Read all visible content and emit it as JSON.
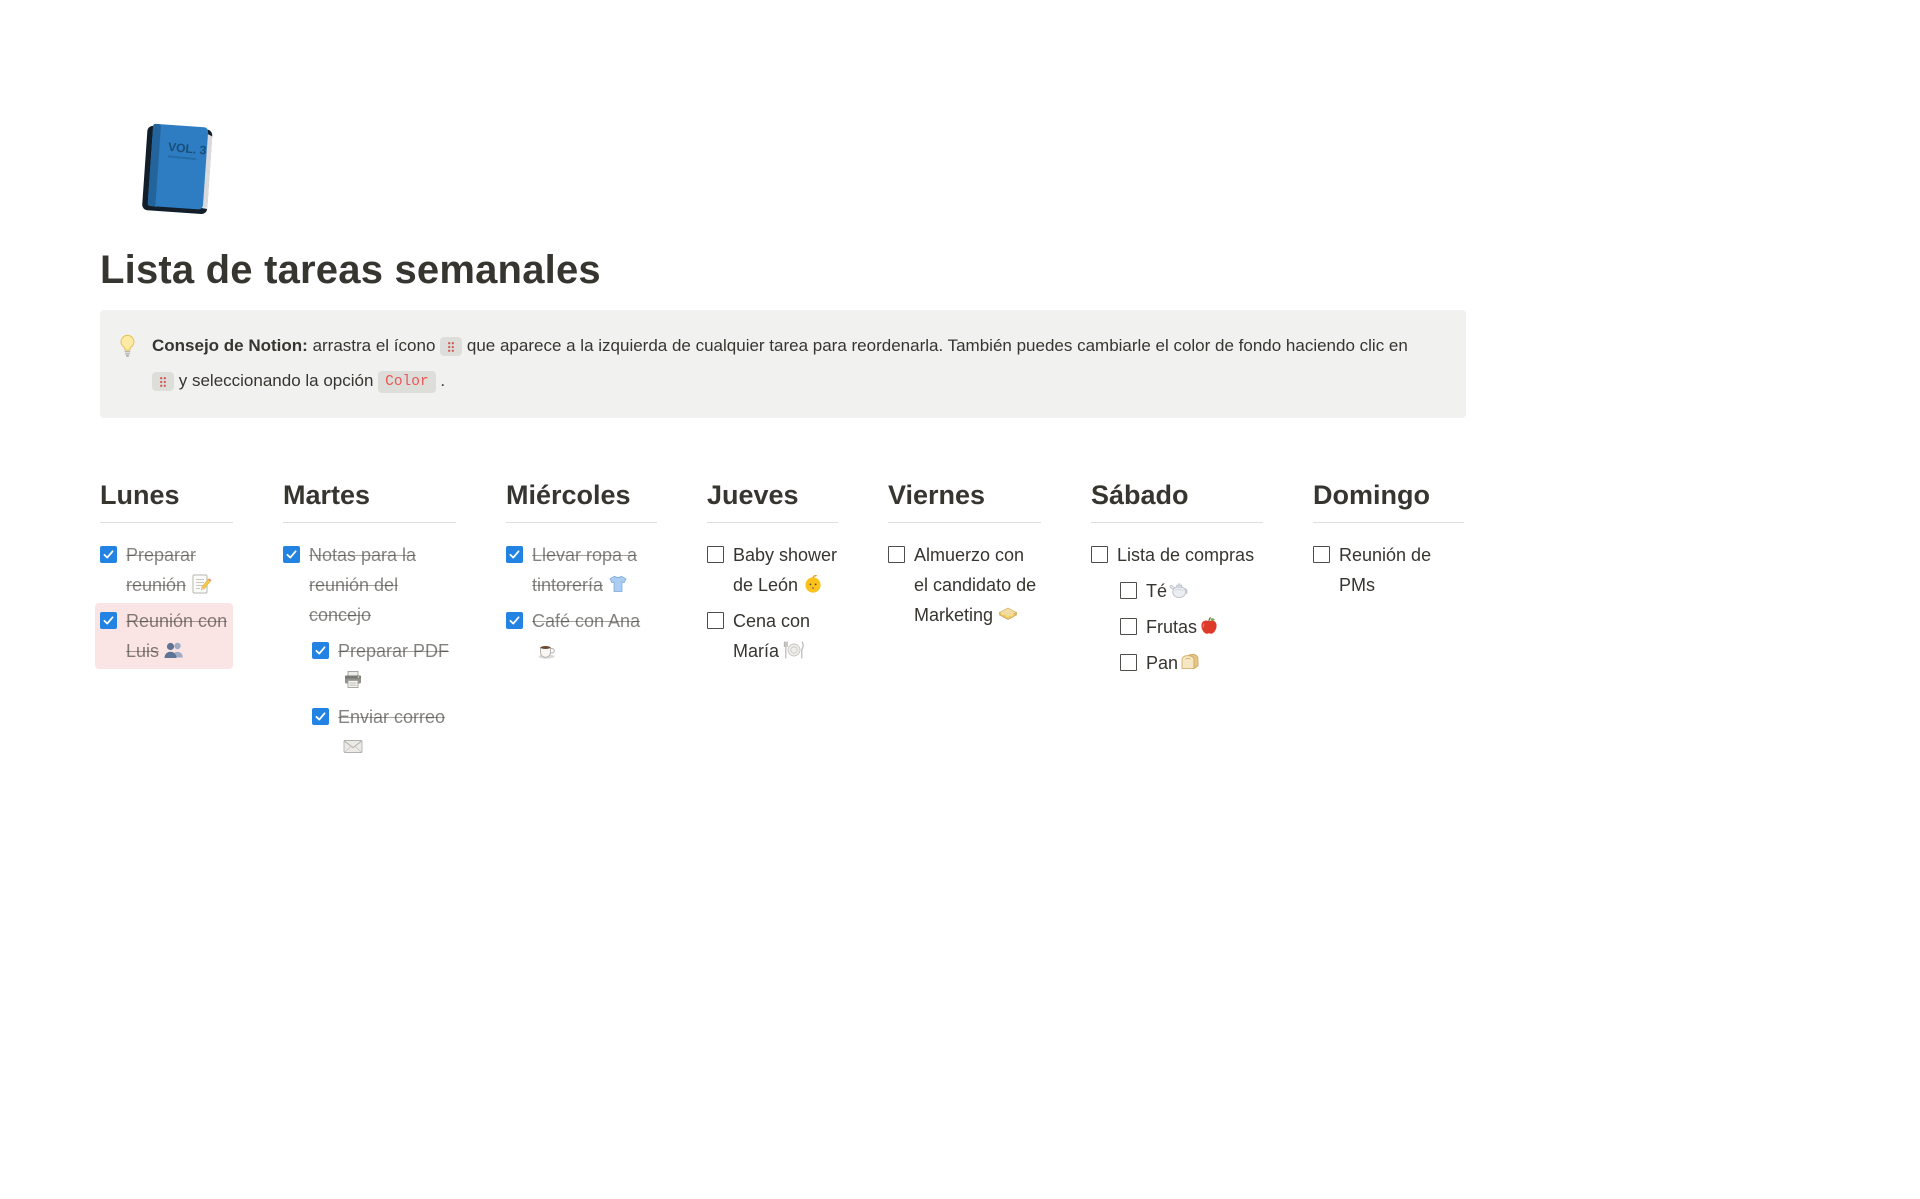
{
  "page": {
    "title": "Lista de tareas semanales",
    "icon": "blue-book"
  },
  "callout": {
    "icon": "light-bulb",
    "bold_label": "Consejo de Notion:",
    "text_before_handle": "arrastra el ícono",
    "text_between_handles": "que aparece a la izquierda de cualquier tarea para reordenarla. También puedes cambiarle el color de fondo haciendo clic en",
    "text_after_handle": "y seleccionando la opción",
    "code_label": "Color",
    "text_end": "."
  },
  "board": {
    "columns": [
      {
        "title": "Lunes",
        "tasks": [
          {
            "text": "Preparar reunión",
            "icon": "memo",
            "checked": true,
            "indent": 0,
            "highlight": false,
            "tight": false
          },
          {
            "text": "Reunión con Luis",
            "icon": "busts",
            "checked": true,
            "indent": 0,
            "highlight": true,
            "tight": false
          }
        ]
      },
      {
        "title": "Martes",
        "tasks": [
          {
            "text": "Notas para la reunión del concejo",
            "icon": null,
            "checked": true,
            "indent": 0,
            "highlight": false,
            "tight": false
          },
          {
            "text": "Preparar PDF",
            "icon": "printer",
            "checked": true,
            "indent": 1,
            "highlight": false,
            "tight": false
          },
          {
            "text": "Enviar correo",
            "icon": "envelope",
            "checked": true,
            "indent": 1,
            "highlight": false,
            "tight": false
          }
        ]
      },
      {
        "title": "Miércoles",
        "tasks": [
          {
            "text": "Llevar ropa a tintorería",
            "icon": "t-shirt",
            "checked": true,
            "indent": 0,
            "highlight": false,
            "tight": false
          },
          {
            "text": "Café con Ana",
            "icon": "coffee",
            "checked": true,
            "indent": 0,
            "highlight": false,
            "tight": false
          }
        ]
      },
      {
        "title": "Jueves",
        "tasks": [
          {
            "text": "Baby shower de León",
            "icon": "baby",
            "checked": false,
            "indent": 0,
            "highlight": false,
            "tight": false
          },
          {
            "text": "Cena con María",
            "icon": "plate-cutlery",
            "checked": false,
            "indent": 0,
            "highlight": false,
            "tight": false
          }
        ]
      },
      {
        "title": "Viernes",
        "tasks": [
          {
            "text": "Almuerzo con el candidato de Marketing",
            "icon": "sandwich",
            "checked": false,
            "indent": 0,
            "highlight": false,
            "tight": false
          }
        ]
      },
      {
        "title": "Sábado",
        "tasks": [
          {
            "text": "Lista de compras",
            "icon": null,
            "checked": false,
            "indent": 0,
            "highlight": false,
            "tight": false
          },
          {
            "text": "Té",
            "icon": "teapot",
            "checked": false,
            "indent": 1,
            "highlight": false,
            "tight": true
          },
          {
            "text": "Frutas",
            "icon": "apple",
            "checked": false,
            "indent": 1,
            "highlight": false,
            "tight": true
          },
          {
            "text": "Pan",
            "icon": "bread",
            "checked": false,
            "indent": 1,
            "highlight": false,
            "tight": true
          }
        ]
      },
      {
        "title": "Domingo",
        "tasks": [
          {
            "text": "Reunión de PMs",
            "icon": null,
            "checked": false,
            "indent": 0,
            "highlight": false,
            "tight": false
          }
        ]
      }
    ]
  },
  "colors": {
    "accent_blue": "#2383E2",
    "highlight_pink": "#FBE4E4",
    "callout_bg": "#F1F1EF",
    "code_red": "#EB5757",
    "text": "#37352F",
    "checked_text": "rgba(55,53,47,0.62)",
    "divider": "rgba(55,53,47,0.16)"
  }
}
